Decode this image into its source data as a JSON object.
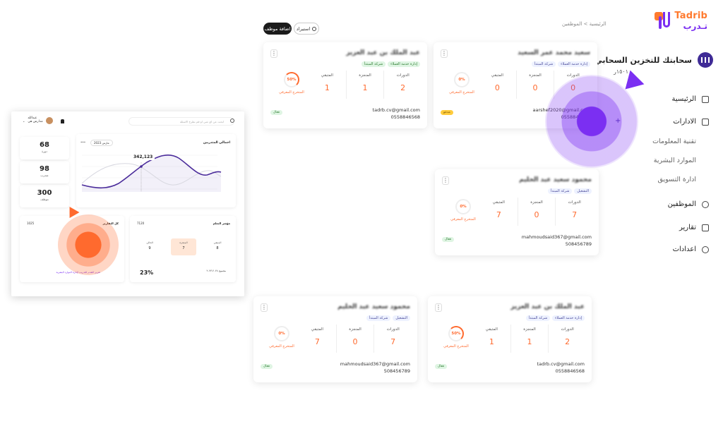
{
  "brand": {
    "name_en": "Tadrib",
    "name_ar": "تـدرب"
  },
  "company": {
    "name": "سحابتك للتخزين السحابي",
    "sub": "١٥٠١ر"
  },
  "sidebar": {
    "items": [
      {
        "label": "الرئيسية",
        "icon": "dashboard-icon"
      },
      {
        "label": "الادارات",
        "icon": "departments-icon"
      },
      {
        "label": "تقنية المعلومات",
        "sub": true
      },
      {
        "label": "الموارد البشرية",
        "sub": true
      },
      {
        "label": "ادارة التسويق",
        "sub": true
      },
      {
        "label": "الموظفين",
        "icon": "users-icon"
      },
      {
        "label": "تقارير",
        "icon": "reports-icon"
      },
      {
        "label": "اعدادات",
        "icon": "gear-icon"
      }
    ]
  },
  "breadcrumb": {
    "home": "الرئيسية",
    "separator": ">",
    "current": "الموظفين"
  },
  "toolbar": {
    "add_label": "اضافة موظف",
    "import_label": "استيراد"
  },
  "stat_labels": {
    "courses": "الدورات",
    "completed": "المنجزة",
    "remaining": "المتبقي",
    "ring_label": "المتخرج المعرفي"
  },
  "cards": [
    {
      "name": "عبد الملك بن عبد العزيز",
      "tags": [
        "إدارة خدمة العملاء",
        "شركة المبتدأ"
      ],
      "tag_style": "green",
      "courses": "2",
      "completed": "1",
      "remaining": "1",
      "percent": "50%",
      "email": "tadrb.cv@gmail.com",
      "phone": "0558846568",
      "status": "فعال",
      "status_style": "green"
    },
    {
      "name": "سعيد محمد عمر السعيد",
      "tags": [
        "إدارة خدمة العملاء",
        "شركة المبتدأ"
      ],
      "tag_style": "blue",
      "courses": "0",
      "completed": "0",
      "remaining": "0",
      "percent": "0%",
      "email": "aarshef2020@gmail.com",
      "phone": "0558846568",
      "status": "مدعو",
      "status_style": "yellow"
    },
    {
      "name": "محمود سعيد عبد الحليم",
      "tags": [
        "التشغيل",
        "شركة المبتدأ"
      ],
      "tag_style": "blue",
      "courses": "7",
      "completed": "0",
      "remaining": "7",
      "percent": "0%",
      "email": "mahmoudsaid367@gmail.com",
      "phone": "508456789",
      "status": "فعال",
      "status_style": "green"
    },
    {
      "name": "محمود سعيد عبد الحليم",
      "tags": [
        "التشغيل",
        "شركة المبتدأ"
      ],
      "tag_style": "blue",
      "courses": "7",
      "completed": "0",
      "remaining": "7",
      "percent": "0%",
      "email": "mahmoudsaid367@gmail.com",
      "phone": "508456789",
      "status": "فعال",
      "status_style": "green"
    },
    {
      "name": "عبد الملك بن عبد العزيز",
      "tags": [
        "إدارة خدمة العملاء",
        "شركة المبتدأ"
      ],
      "tag_style": "blue",
      "courses": "2",
      "completed": "1",
      "remaining": "1",
      "percent": "50%",
      "email": "tadrb.cv@gmail.com",
      "phone": "0558846568",
      "status": "فعال",
      "status_style": "green"
    }
  ],
  "dashboard": {
    "search_placeholder": "ابحث عن اي شي او قم بطرح الاسئلة",
    "user_name": "عبدالله",
    "user_role": "مدارس هي",
    "stats": [
      {
        "value": "68",
        "label": "دورة"
      },
      {
        "value": "98",
        "label": "متدرب"
      },
      {
        "value": "300",
        "label": "موظف"
      }
    ],
    "chart_title": "اجمالي المتدربين",
    "chart_date": "مارس 2023",
    "chart_tip": "342,123",
    "reports_title": "كل التقارير",
    "reports_num": "1025",
    "reports_link": "تقرير التقدم للتدريب لإدارة الموارد البشرية",
    "progress_title": "مؤشر التعلم",
    "progress_num": "7120",
    "pills": [
      {
        "label": "المتبقي",
        "value": "8"
      },
      {
        "label": "المنجزة",
        "value": "7"
      },
      {
        "label": "الحالي",
        "value": "9"
      }
    ],
    "progress_pct": "23%",
    "progress_foot": "مجموع ٢٠٢٤-٢٠٢٣",
    "colors": {
      "purple": "#7b2ff2",
      "orange": "#ff6a2e"
    }
  }
}
